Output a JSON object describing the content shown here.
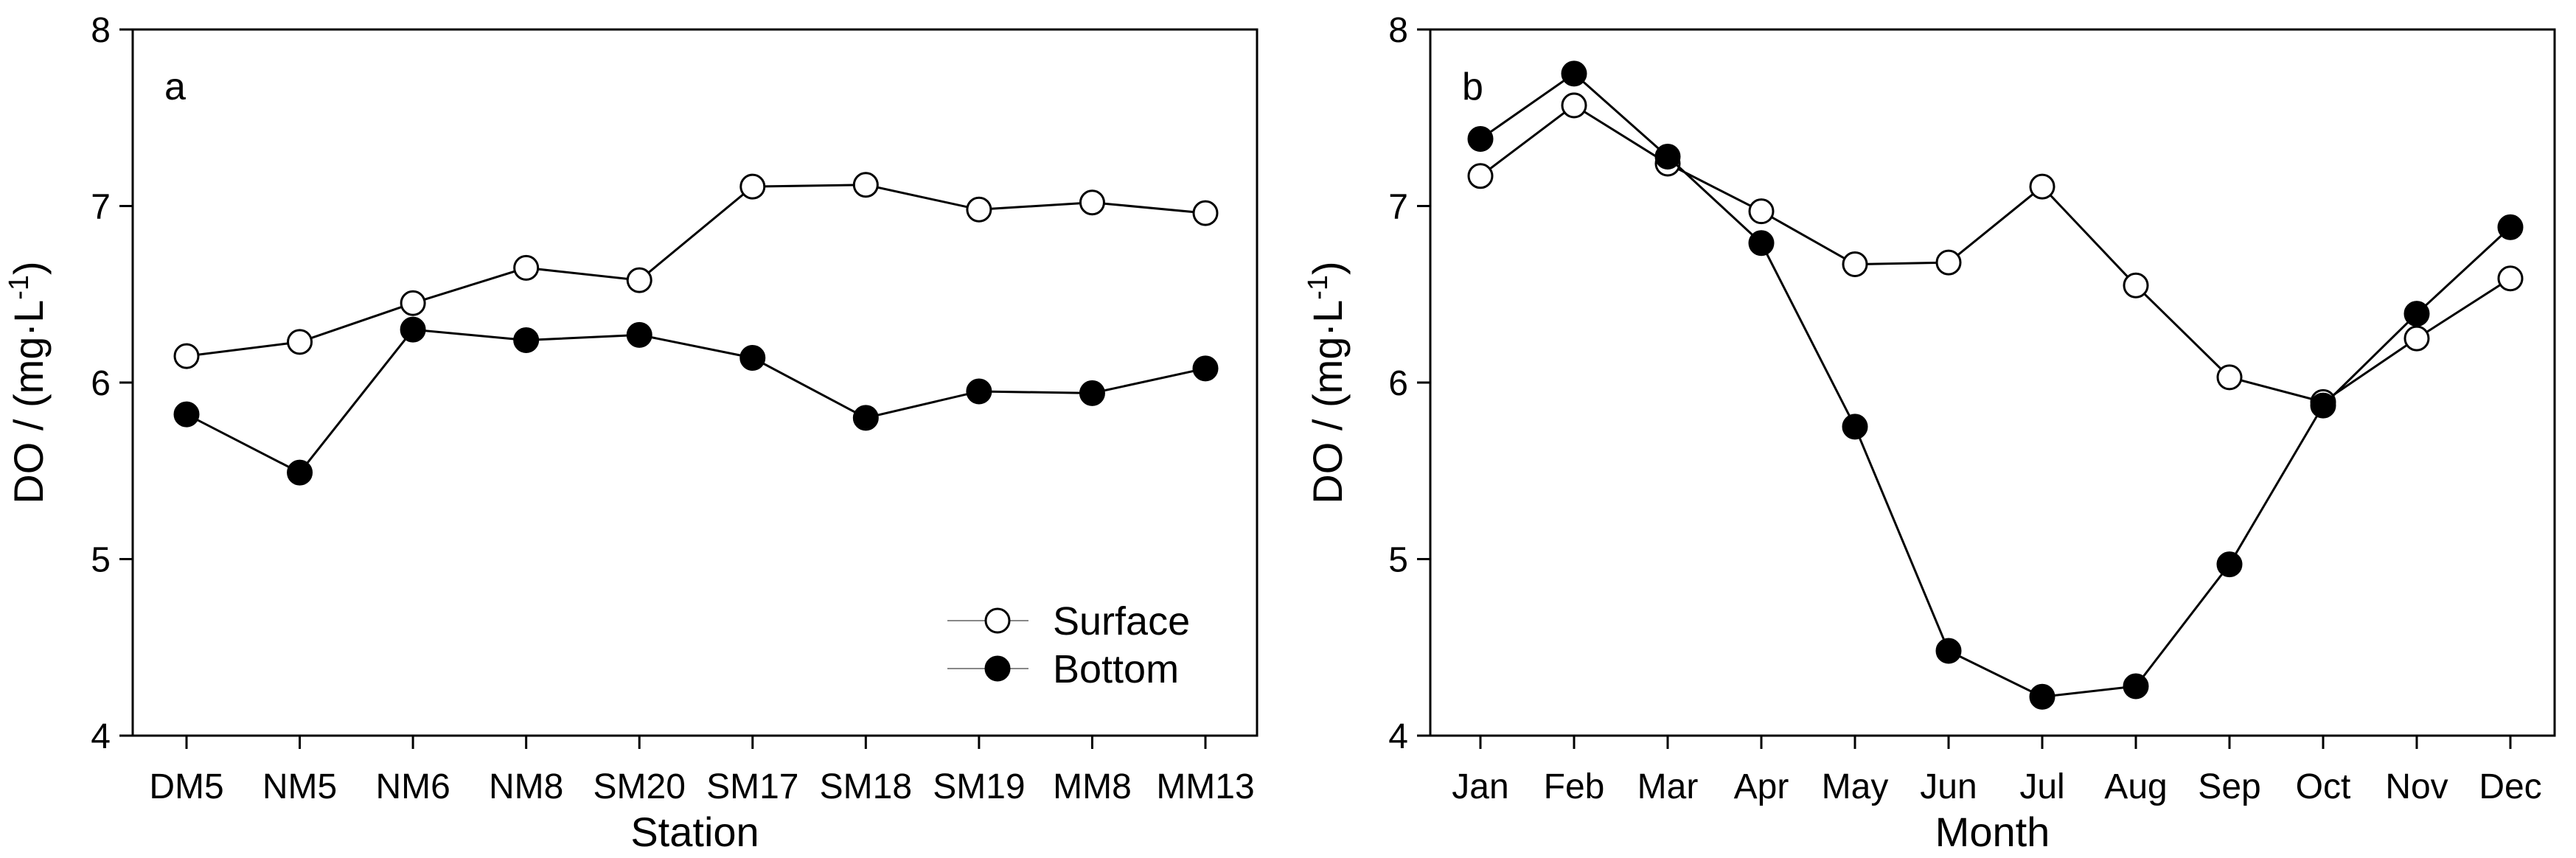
{
  "chart_data": [
    {
      "type": "line",
      "panel_label": "a",
      "xlabel": "Station",
      "ylabel": "DO / (mg·L",
      "ylabel_sup": "-1",
      "ylabel_close": ")",
      "ylim": [
        4,
        8
      ],
      "yticks": [
        "4",
        "5",
        "6",
        "7",
        "8"
      ],
      "categories": [
        "DM5",
        "NM5",
        "NM6",
        "NM8",
        "SM20",
        "SM17",
        "SM18",
        "SM19",
        "MM8",
        "MM13"
      ],
      "series": [
        {
          "name": "Surface",
          "marker": "open-circle",
          "values": [
            6.15,
            6.23,
            6.45,
            6.65,
            6.58,
            7.11,
            7.12,
            6.98,
            7.02,
            6.96
          ]
        },
        {
          "name": "Bottom",
          "marker": "filled-circle",
          "values": [
            5.82,
            5.49,
            6.3,
            6.24,
            6.27,
            6.14,
            5.8,
            5.95,
            5.94,
            6.08
          ]
        }
      ],
      "legend": {
        "placement": "bottom-right",
        "entries": [
          "Surface",
          "Bottom"
        ]
      }
    },
    {
      "type": "line",
      "panel_label": "b",
      "xlabel": "Month",
      "ylabel": "DO / (mg·L",
      "ylabel_sup": "-1",
      "ylabel_close": ")",
      "ylim": [
        4,
        8
      ],
      "yticks": [
        "4",
        "5",
        "6",
        "7",
        "8"
      ],
      "categories": [
        "Jan",
        "Feb",
        "Mar",
        "Apr",
        "May",
        "Jun",
        "Jul",
        "Aug",
        "Sep",
        "Oct",
        "Nov",
        "Dec"
      ],
      "series": [
        {
          "name": "Surface",
          "marker": "open-circle",
          "values": [
            7.17,
            7.57,
            7.24,
            6.97,
            6.67,
            6.68,
            7.11,
            6.55,
            6.03,
            5.89,
            6.25,
            6.59
          ]
        },
        {
          "name": "Bottom",
          "marker": "filled-circle",
          "values": [
            7.38,
            7.75,
            7.28,
            6.79,
            5.75,
            4.48,
            4.22,
            4.28,
            4.97,
            5.87,
            6.39,
            6.88
          ]
        }
      ]
    }
  ]
}
